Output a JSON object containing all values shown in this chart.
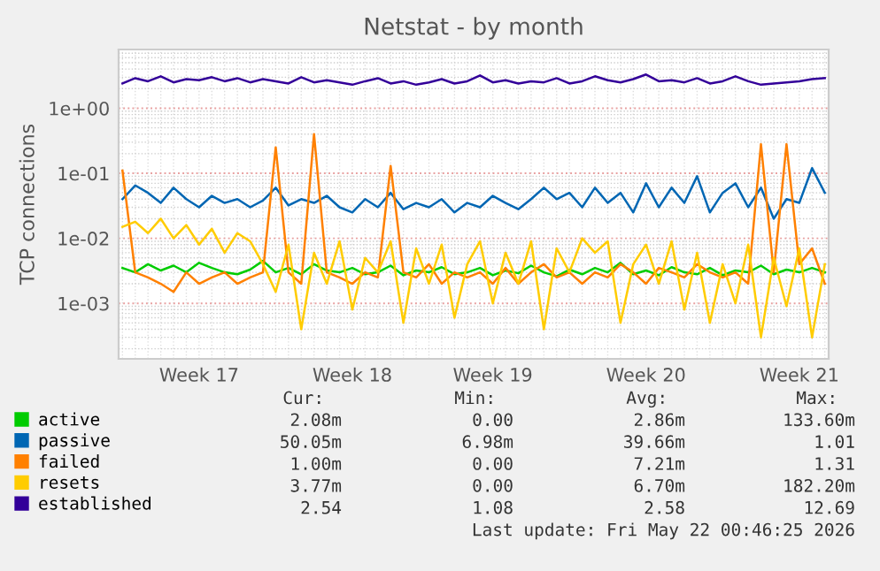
{
  "chart_data": {
    "type": "line",
    "title": "Netstat - by month",
    "ylabel": "TCP connections",
    "log": "y",
    "grid": true,
    "legend": "bottom",
    "marker": "none",
    "line_style": "solid",
    "categories": [
      null,
      null,
      null,
      null,
      null,
      null,
      "Week 17",
      null,
      null,
      null,
      null,
      null,
      null,
      null,
      null,
      null,
      null,
      null,
      "Week 18",
      null,
      null,
      null,
      null,
      null,
      null,
      null,
      null,
      null,
      null,
      "Week 19",
      null,
      null,
      null,
      null,
      null,
      null,
      null,
      null,
      null,
      null,
      null,
      "Week 20",
      null,
      null,
      null,
      null,
      null,
      null,
      null,
      null,
      null,
      null,
      null,
      "Week 21",
      null,
      null
    ],
    "ylim": [
      0.00014,
      8
    ],
    "yticks": [
      {
        "value": 0.001,
        "label": "1e-03"
      },
      {
        "value": 0.01,
        "label": "1e-02"
      },
      {
        "value": 0.1,
        "label": "1e-01"
      },
      {
        "value": 1,
        "label": "1e+00"
      }
    ],
    "series": [
      {
        "name": "active",
        "color": "#00cc00",
        "values": [
          0.0035,
          0.003,
          0.004,
          0.0032,
          0.0038,
          0.003,
          0.0042,
          0.0035,
          0.003,
          0.0028,
          0.0033,
          0.0045,
          0.003,
          0.0035,
          0.0028,
          0.004,
          0.0032,
          0.003,
          0.0035,
          0.0028,
          0.003,
          0.0038,
          0.0027,
          0.0032,
          0.003,
          0.0036,
          0.0028,
          0.003,
          0.0035,
          0.0027,
          0.0032,
          0.0029,
          0.0038,
          0.003,
          0.0026,
          0.0033,
          0.0028,
          0.0035,
          0.003,
          0.0042,
          0.0028,
          0.0032,
          0.0027,
          0.0036,
          0.003,
          0.0028,
          0.0035,
          0.0027,
          0.0032,
          0.003,
          0.0038,
          0.0028,
          0.0033,
          0.003,
          0.0035,
          0.003
        ]
      },
      {
        "name": "passive",
        "color": "#0066b3",
        "values": [
          0.04,
          0.065,
          0.05,
          0.035,
          0.06,
          0.04,
          0.03,
          0.045,
          0.035,
          0.04,
          0.03,
          0.038,
          0.06,
          0.032,
          0.04,
          0.035,
          0.045,
          0.03,
          0.025,
          0.04,
          0.03,
          0.05,
          0.028,
          0.035,
          0.03,
          0.04,
          0.025,
          0.035,
          0.03,
          0.045,
          0.035,
          0.028,
          0.04,
          0.06,
          0.04,
          0.05,
          0.03,
          0.06,
          0.035,
          0.05,
          0.025,
          0.07,
          0.03,
          0.06,
          0.035,
          0.09,
          0.025,
          0.05,
          0.07,
          0.03,
          0.06,
          0.02,
          0.04,
          0.035,
          0.12,
          0.05
        ]
      },
      {
        "name": "failed",
        "color": "#ff8000",
        "values": [
          0.11,
          0.003,
          0.0025,
          0.002,
          0.0015,
          0.003,
          0.002,
          0.0025,
          0.003,
          0.002,
          0.0025,
          0.003,
          0.25,
          0.003,
          0.002,
          0.4,
          0.003,
          0.0025,
          0.002,
          0.003,
          0.0025,
          0.13,
          0.003,
          0.0025,
          0.004,
          0.002,
          0.003,
          0.0025,
          0.003,
          0.002,
          0.0035,
          0.002,
          0.003,
          0.004,
          0.0025,
          0.003,
          0.002,
          0.003,
          0.0025,
          0.004,
          0.003,
          0.002,
          0.0035,
          0.003,
          0.0025,
          0.004,
          0.003,
          0.0025,
          0.003,
          0.002,
          0.28,
          0.003,
          0.28,
          0.004,
          0.007,
          0.002
        ]
      },
      {
        "name": "resets",
        "color": "#ffcc00",
        "values": [
          0.015,
          0.018,
          0.012,
          0.02,
          0.01,
          0.016,
          0.008,
          0.014,
          0.006,
          0.012,
          0.009,
          0.004,
          0.0015,
          0.008,
          0.0004,
          0.006,
          0.002,
          0.009,
          0.0008,
          0.005,
          0.003,
          0.009,
          0.0005,
          0.007,
          0.002,
          0.008,
          0.0006,
          0.004,
          0.009,
          0.001,
          0.006,
          0.002,
          0.009,
          0.0004,
          0.007,
          0.003,
          0.01,
          0.006,
          0.009,
          0.0005,
          0.004,
          0.008,
          0.002,
          0.009,
          0.0008,
          0.006,
          0.0005,
          0.004,
          0.001,
          0.008,
          0.0003,
          0.005,
          0.0009,
          0.007,
          0.0003,
          0.004
        ]
      },
      {
        "name": "established",
        "color": "#330099",
        "values": [
          2.4,
          2.9,
          2.6,
          3.1,
          2.5,
          2.8,
          2.7,
          3.0,
          2.6,
          2.9,
          2.5,
          2.8,
          2.6,
          2.4,
          3.0,
          2.5,
          2.7,
          2.5,
          2.3,
          2.6,
          2.9,
          2.4,
          2.6,
          2.3,
          2.5,
          2.8,
          2.4,
          2.6,
          3.2,
          2.5,
          2.7,
          2.4,
          2.6,
          2.5,
          2.9,
          2.4,
          2.6,
          3.1,
          2.7,
          2.5,
          2.8,
          3.3,
          2.6,
          2.7,
          2.5,
          2.9,
          2.4,
          2.6,
          3.1,
          2.6,
          2.3,
          2.4,
          2.5,
          2.6,
          2.8,
          2.9
        ]
      }
    ],
    "annotations": [
      "Cur:",
      "Min:",
      "Avg:",
      "Max:",
      "2.08m",
      "0.00",
      "2.86m",
      "133.60m",
      "50.05m",
      "6.98m",
      "39.66m",
      "1.01",
      "1.00m",
      "0.00",
      "7.21m",
      "1.31",
      "3.77m",
      "0.00",
      "6.70m",
      "182.20m",
      "2.54",
      "1.08",
      "2.58",
      "12.69",
      "Last update: Fri May 22 00:46:25 2026"
    ]
  }
}
